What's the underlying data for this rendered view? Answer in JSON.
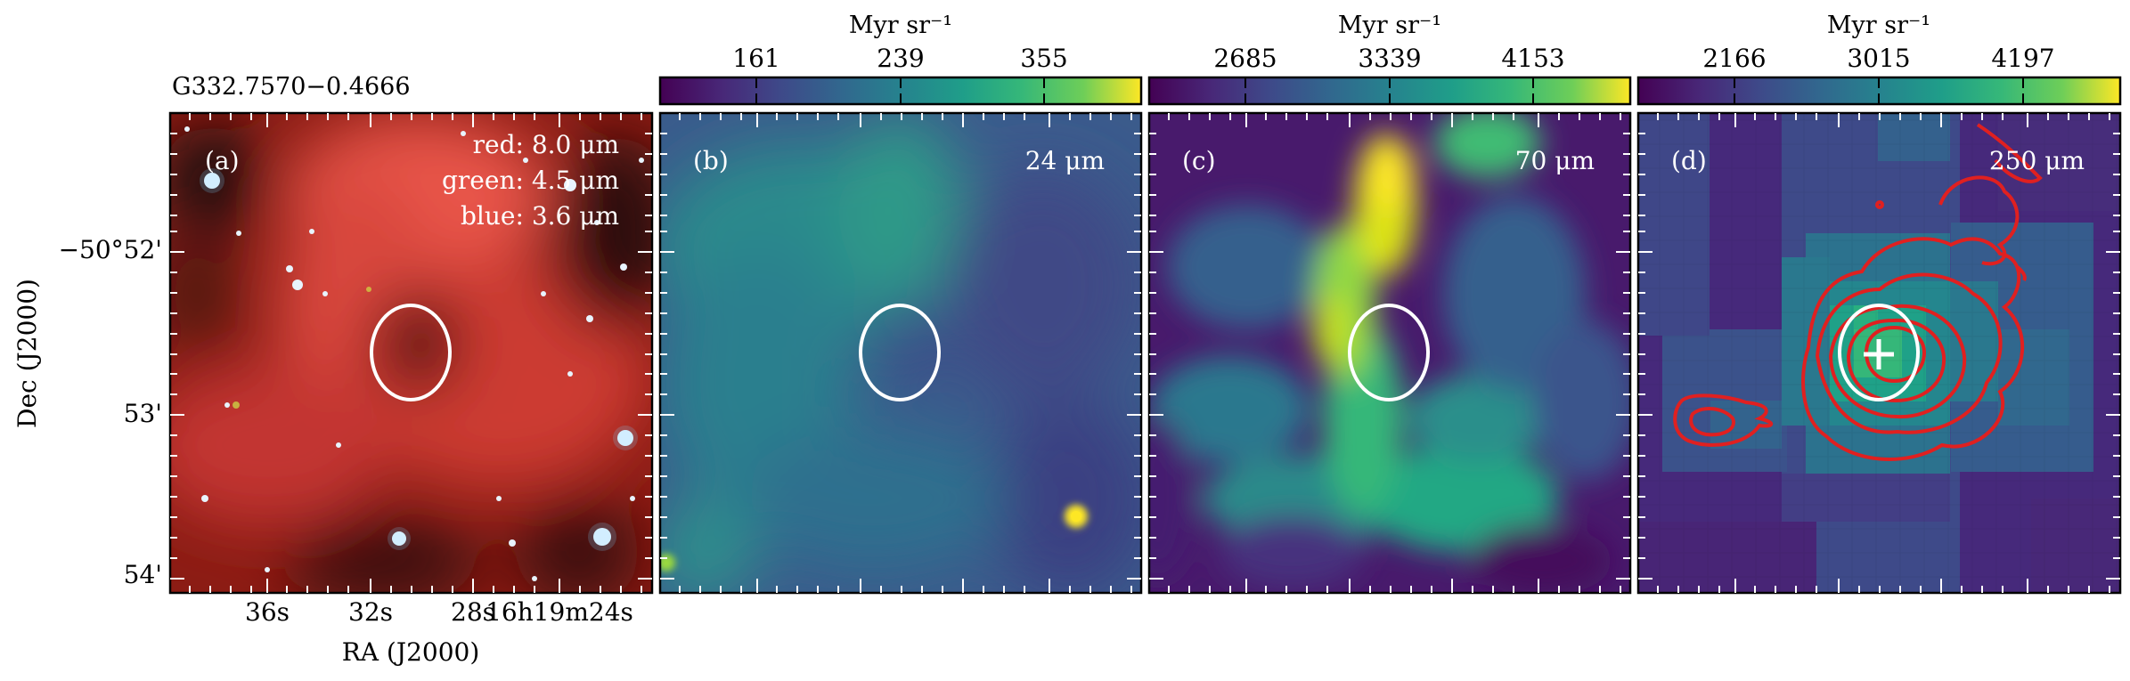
{
  "source_name": "G332.7570−0.4666",
  "y_axis": {
    "label": "Dec (J2000)",
    "ticks": [
      "−50°52'",
      "53'",
      "54'"
    ]
  },
  "x_axis": {
    "label": "RA (J2000)",
    "ticks": [
      "36s",
      "32s",
      "28s",
      "16h19m24s"
    ]
  },
  "panels": [
    {
      "letter": "(a)",
      "composite": [
        "red: 8.0 μm",
        "green: 4.5 μm",
        "blue: 3.6 μm"
      ]
    },
    {
      "letter": "(b)",
      "wavelength": "24 μm",
      "colorbar": {
        "unit": "Myr sr⁻¹",
        "ticks": [
          "161",
          "239",
          "355"
        ]
      }
    },
    {
      "letter": "(c)",
      "wavelength": "70 μm",
      "colorbar": {
        "unit": "Myr sr⁻¹",
        "ticks": [
          "2685",
          "3339",
          "4153"
        ]
      }
    },
    {
      "letter": "(d)",
      "wavelength": "250 μm",
      "colorbar": {
        "unit": "Myr sr⁻¹",
        "ticks": [
          "2166",
          "3015",
          "4197"
        ]
      }
    }
  ],
  "colors": {
    "contour": "#e02020",
    "ellipse": "#ffffff",
    "colormap": "viridis"
  }
}
